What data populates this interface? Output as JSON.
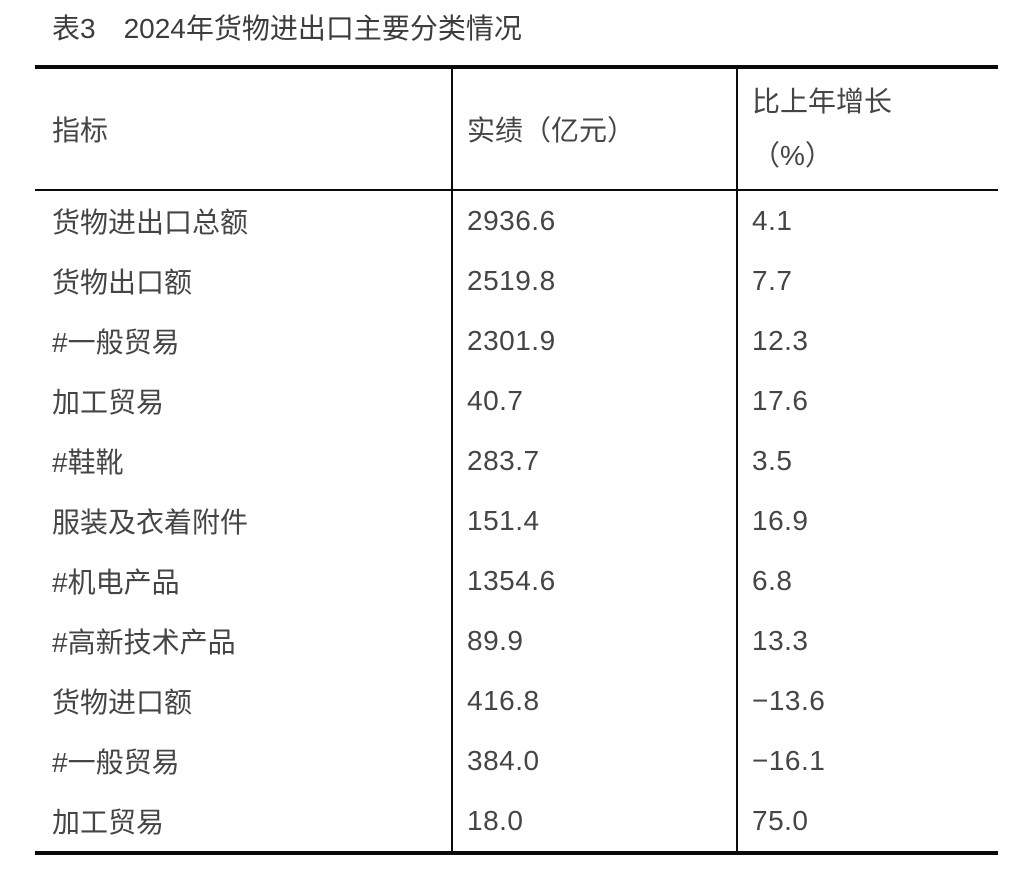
{
  "title": "表3　2024年货物进出口主要分类情况",
  "colors": {
    "background": "#ffffff",
    "text": "#454545",
    "rule": "#0b0b0b"
  },
  "table": {
    "headers": {
      "indicator": "指标",
      "value": "实绩（亿元）",
      "growth_line1": "比上年增长",
      "growth_line2": "（%）"
    },
    "rows": [
      {
        "indicator": "货物进出口总额",
        "value": "2936.6",
        "growth": "4.1"
      },
      {
        "indicator": "货物出口额",
        "value": "2519.8",
        "growth": "7.7"
      },
      {
        "indicator": "#一般贸易",
        "value": "2301.9",
        "growth": "12.3"
      },
      {
        "indicator": "加工贸易",
        "value": "40.7",
        "growth": "17.6"
      },
      {
        "indicator": "#鞋靴",
        "value": "283.7",
        "growth": "3.5"
      },
      {
        "indicator": "服装及衣着附件",
        "value": "151.4",
        "growth": "16.9"
      },
      {
        "indicator": "#机电产品",
        "value": "1354.6",
        "growth": "6.8"
      },
      {
        "indicator": "#高新技术产品",
        "value": "89.9",
        "growth": "13.3"
      },
      {
        "indicator": "货物进口额",
        "value": "416.8",
        "growth": "−13.6"
      },
      {
        "indicator": "#一般贸易",
        "value": "384.0",
        "growth": "−16.1"
      },
      {
        "indicator": "加工贸易",
        "value": "18.0",
        "growth": "75.0"
      }
    ]
  }
}
